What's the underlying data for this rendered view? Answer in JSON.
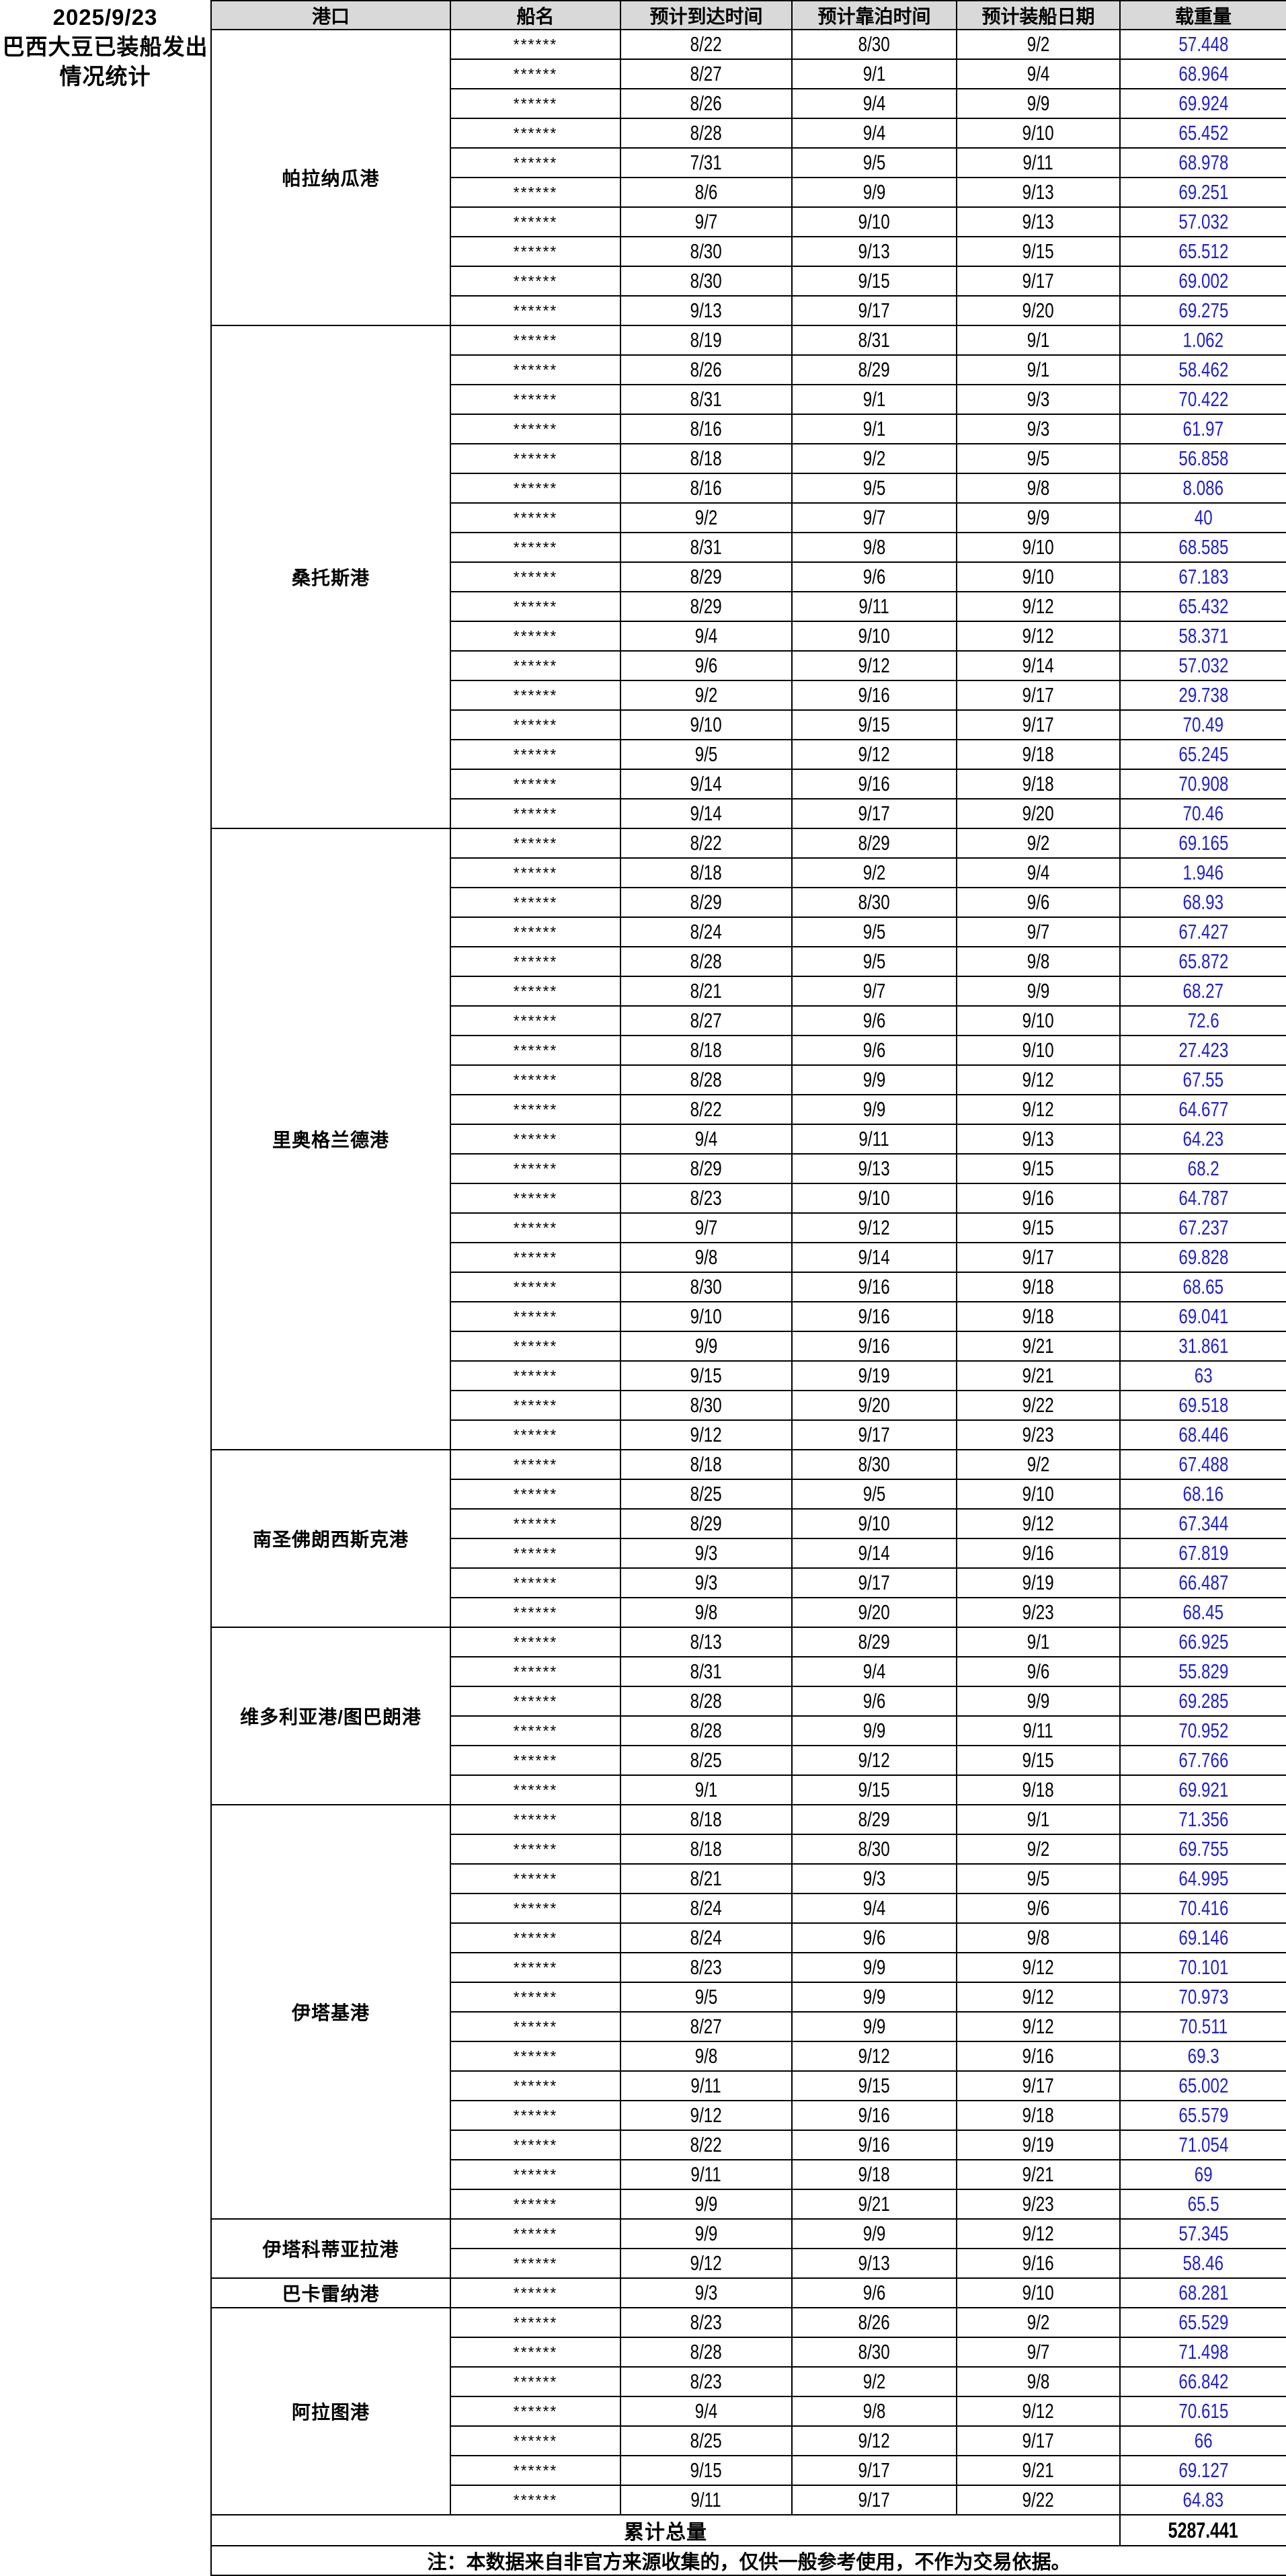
{
  "title": {
    "date": "2025/9/23",
    "line1": "巴西大豆已装船发出",
    "line2": "情况统计"
  },
  "colors": {
    "header_bg": "#d9d9d9",
    "weight_text": "#2121cc"
  },
  "table": {
    "headers": {
      "port": "港口",
      "ship": "船名",
      "arrival": "预计到达时间",
      "berth": "预计靠泊时间",
      "loading": "预计装船日期",
      "weight": "载重量"
    },
    "ship_name_mask": "******",
    "ports": [
      {
        "name": "帕拉纳瓜港",
        "rows": [
          [
            "8/22",
            "8/30",
            "9/2",
            "57.448"
          ],
          [
            "8/27",
            "9/1",
            "9/4",
            "68.964"
          ],
          [
            "8/26",
            "9/4",
            "9/9",
            "69.924"
          ],
          [
            "8/28",
            "9/4",
            "9/10",
            "65.452"
          ],
          [
            "7/31",
            "9/5",
            "9/11",
            "68.978"
          ],
          [
            "8/6",
            "9/9",
            "9/13",
            "69.251"
          ],
          [
            "9/7",
            "9/10",
            "9/13",
            "57.032"
          ],
          [
            "8/30",
            "9/13",
            "9/15",
            "65.512"
          ],
          [
            "8/30",
            "9/15",
            "9/17",
            "69.002"
          ],
          [
            "9/13",
            "9/17",
            "9/20",
            "69.275"
          ]
        ]
      },
      {
        "name": "桑托斯港",
        "rows": [
          [
            "8/19",
            "8/31",
            "9/1",
            "1.062"
          ],
          [
            "8/26",
            "8/29",
            "9/1",
            "58.462"
          ],
          [
            "8/31",
            "9/1",
            "9/3",
            "70.422"
          ],
          [
            "8/16",
            "9/1",
            "9/3",
            "61.97"
          ],
          [
            "8/18",
            "9/2",
            "9/5",
            "56.858"
          ],
          [
            "8/16",
            "9/5",
            "9/8",
            "8.086"
          ],
          [
            "9/2",
            "9/7",
            "9/9",
            "40"
          ],
          [
            "8/31",
            "9/8",
            "9/10",
            "68.585"
          ],
          [
            "8/29",
            "9/6",
            "9/10",
            "67.183"
          ],
          [
            "8/29",
            "9/11",
            "9/12",
            "65.432"
          ],
          [
            "9/4",
            "9/10",
            "9/12",
            "58.371"
          ],
          [
            "9/6",
            "9/12",
            "9/14",
            "57.032"
          ],
          [
            "9/2",
            "9/16",
            "9/17",
            "29.738"
          ],
          [
            "9/10",
            "9/15",
            "9/17",
            "70.49"
          ],
          [
            "9/5",
            "9/12",
            "9/18",
            "65.245"
          ],
          [
            "9/14",
            "9/16",
            "9/18",
            "70.908"
          ],
          [
            "9/14",
            "9/17",
            "9/20",
            "70.46"
          ]
        ]
      },
      {
        "name": "里奥格兰德港",
        "rows": [
          [
            "8/22",
            "8/29",
            "9/2",
            "69.165"
          ],
          [
            "8/18",
            "9/2",
            "9/4",
            "1.946"
          ],
          [
            "8/29",
            "8/30",
            "9/6",
            "68.93"
          ],
          [
            "8/24",
            "9/5",
            "9/7",
            "67.427"
          ],
          [
            "8/28",
            "9/5",
            "9/8",
            "65.872"
          ],
          [
            "8/21",
            "9/7",
            "9/9",
            "68.27"
          ],
          [
            "8/27",
            "9/6",
            "9/10",
            "72.6"
          ],
          [
            "8/18",
            "9/6",
            "9/10",
            "27.423"
          ],
          [
            "8/28",
            "9/9",
            "9/12",
            "67.55"
          ],
          [
            "8/22",
            "9/9",
            "9/12",
            "64.677"
          ],
          [
            "9/4",
            "9/11",
            "9/13",
            "64.23"
          ],
          [
            "8/29",
            "9/13",
            "9/15",
            "68.2"
          ],
          [
            "8/23",
            "9/10",
            "9/16",
            "64.787"
          ],
          [
            "9/7",
            "9/12",
            "9/15",
            "67.237"
          ],
          [
            "9/8",
            "9/14",
            "9/17",
            "69.828"
          ],
          [
            "8/30",
            "9/16",
            "9/18",
            "68.65"
          ],
          [
            "9/10",
            "9/16",
            "9/18",
            "69.041"
          ],
          [
            "9/9",
            "9/16",
            "9/21",
            "31.861"
          ],
          [
            "9/15",
            "9/19",
            "9/21",
            "63"
          ],
          [
            "8/30",
            "9/20",
            "9/22",
            "69.518"
          ],
          [
            "9/12",
            "9/17",
            "9/23",
            "68.446"
          ]
        ]
      },
      {
        "name": "南圣佛朗西斯克港",
        "rows": [
          [
            "8/18",
            "8/30",
            "9/2",
            "67.488"
          ],
          [
            "8/25",
            "9/5",
            "9/10",
            "68.16"
          ],
          [
            "8/29",
            "9/10",
            "9/12",
            "67.344"
          ],
          [
            "9/3",
            "9/14",
            "9/16",
            "67.819"
          ],
          [
            "9/3",
            "9/17",
            "9/19",
            "66.487"
          ],
          [
            "9/8",
            "9/20",
            "9/23",
            "68.45"
          ]
        ]
      },
      {
        "name": "维多利亚港/图巴朗港",
        "rows": [
          [
            "8/13",
            "8/29",
            "9/1",
            "66.925"
          ],
          [
            "8/31",
            "9/4",
            "9/6",
            "55.829"
          ],
          [
            "8/28",
            "9/6",
            "9/9",
            "69.285"
          ],
          [
            "8/28",
            "9/9",
            "9/11",
            "70.952"
          ],
          [
            "8/25",
            "9/12",
            "9/15",
            "67.766"
          ],
          [
            "9/1",
            "9/15",
            "9/18",
            "69.921"
          ]
        ]
      },
      {
        "name": "伊塔基港",
        "rows": [
          [
            "8/18",
            "8/29",
            "9/1",
            "71.356"
          ],
          [
            "8/18",
            "8/30",
            "9/2",
            "69.755"
          ],
          [
            "8/21",
            "9/3",
            "9/5",
            "64.995"
          ],
          [
            "8/24",
            "9/4",
            "9/6",
            "70.416"
          ],
          [
            "8/24",
            "9/6",
            "9/8",
            "69.146"
          ],
          [
            "8/23",
            "9/9",
            "9/12",
            "70.101"
          ],
          [
            "9/5",
            "9/9",
            "9/12",
            "70.973"
          ],
          [
            "8/27",
            "9/9",
            "9/12",
            "70.511"
          ],
          [
            "9/8",
            "9/12",
            "9/16",
            "69.3"
          ],
          [
            "9/11",
            "9/15",
            "9/17",
            "65.002"
          ],
          [
            "9/12",
            "9/16",
            "9/18",
            "65.579"
          ],
          [
            "8/22",
            "9/16",
            "9/19",
            "71.054"
          ],
          [
            "9/11",
            "9/18",
            "9/21",
            "69"
          ],
          [
            "9/9",
            "9/21",
            "9/23",
            "65.5"
          ]
        ]
      },
      {
        "name": "伊塔科蒂亚拉港",
        "rows": [
          [
            "9/9",
            "9/9",
            "9/12",
            "57.345"
          ],
          [
            "9/12",
            "9/13",
            "9/16",
            "58.46"
          ]
        ]
      },
      {
        "name": "巴卡雷纳港",
        "rows": [
          [
            "9/3",
            "9/6",
            "9/10",
            "68.281"
          ]
        ]
      },
      {
        "name": "阿拉图港",
        "rows": [
          [
            "8/23",
            "8/26",
            "9/2",
            "65.529"
          ],
          [
            "8/28",
            "8/30",
            "9/7",
            "71.498"
          ],
          [
            "8/23",
            "9/2",
            "9/8",
            "66.842"
          ],
          [
            "9/4",
            "9/8",
            "9/12",
            "70.615"
          ],
          [
            "8/25",
            "9/12",
            "9/17",
            "66"
          ],
          [
            "9/15",
            "9/17",
            "9/21",
            "69.127"
          ],
          [
            "9/11",
            "9/17",
            "9/22",
            "64.83"
          ]
        ]
      }
    ],
    "total_label": "累计总量",
    "total_value": "5287.441",
    "note": "注：本数据来自非官方来源收集的，仅供一般参考使用，不作为交易依据。"
  }
}
